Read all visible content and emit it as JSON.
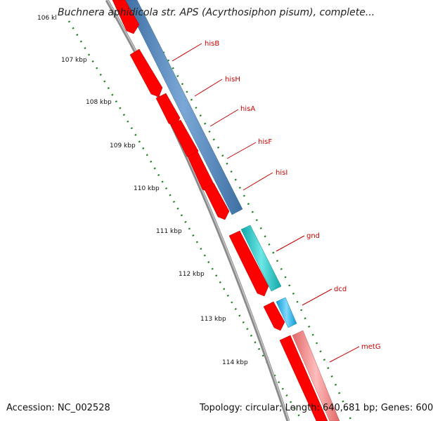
{
  "title": "Buchnera aphidicola str. APS (Acyrthosiphon pisum), complete...",
  "footer": {
    "accession": "Accession: NC_002528",
    "summary": "Topology: circular; Length: 640,681 bp; Genes: 600"
  },
  "ticks": [
    "106 kl",
    "107 kbp",
    "108 kbp",
    "109 kbp",
    "110 kbp",
    "111 kbp",
    "112 kbp",
    "113 kbp",
    "114 kbp"
  ],
  "genes": [
    "hisB",
    "hisH",
    "hisA",
    "hisF",
    "hisI",
    "gnd",
    "dcd",
    "metG"
  ],
  "colors": {
    "cds": "#ff0000",
    "his_operon": "#4a7fb5",
    "gnd": "#20c4c4",
    "dcd": "#1eb4e8",
    "metG": "#f08080",
    "backbone": "#808080",
    "tick": "#1a7f1a",
    "label": "#cc0000"
  }
}
